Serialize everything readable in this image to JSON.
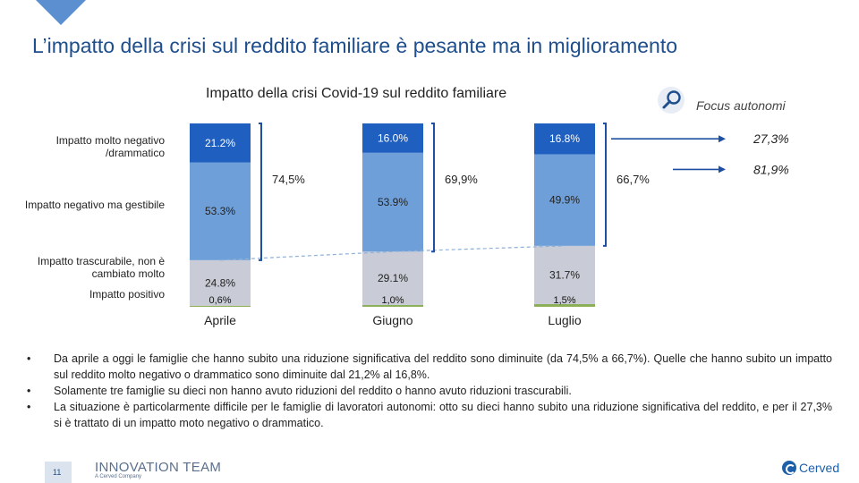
{
  "slide": {
    "title": "L’impatto della crisi sul reddito familiare è pesante ma in miglioramento",
    "page_number": "11"
  },
  "chart_data": {
    "type": "bar",
    "stacked": true,
    "title": "Impatto della crisi Covid-19 sul reddito familiare",
    "categories": [
      "Aprile",
      "Giugno",
      "Luglio"
    ],
    "series": [
      {
        "name": "Impatto positivo",
        "values": [
          0.6,
          1.0,
          1.5
        ],
        "labels": [
          "0,6%",
          "1,0%",
          "1,5%"
        ],
        "color": "#8cb05a"
      },
      {
        "name": "Impatto trascurabile, non è cambiato molto",
        "values": [
          24.8,
          29.1,
          31.7
        ],
        "labels": [
          "24.8%",
          "29.1%",
          "31.7%"
        ],
        "color": "#c9ccd6"
      },
      {
        "name": "Impatto negativo ma gestibile",
        "values": [
          53.3,
          53.9,
          49.9
        ],
        "labels": [
          "53.3%",
          "53.9%",
          "49.9%"
        ],
        "color": "#6e9fd8"
      },
      {
        "name": "Impatto molto negativo /drammatico",
        "values": [
          21.2,
          16.0,
          16.8
        ],
        "labels": [
          "21.2%",
          "16.0%",
          "16.8%"
        ],
        "color": "#1f5fc0"
      }
    ],
    "negative_totals": [
      "74,5%",
      "69,9%",
      "66,7%"
    ],
    "ylim": [
      0,
      100
    ],
    "focus_autonomi": {
      "label": "Focus autonomi",
      "molto_negativo": "27,3%",
      "totale_negativo": "81,9%"
    }
  },
  "row_labels": [
    "Impatto molto negativo /drammatico",
    "Impatto negativo ma gestibile",
    "Impatto trascurabile, non è cambiato molto",
    "Impatto positivo"
  ],
  "bullets": [
    "Da aprile a oggi le famiglie che hanno subito una riduzione significativa del reddito sono diminuite (da 74,5% a 66,7%). Quelle che hanno subito un impatto sul reddito molto negativo o drammatico sono diminuite dal 21,2% al 16,8%.",
    "Solamente tre famiglie su dieci non hanno avuto riduzioni del reddito o hanno avuto riduzioni trascurabili.",
    "La situazione è particolarmente difficile per le famiglie di lavoratori autonomi: otto su dieci hanno subito una riduzione significativa del reddito, e per il 27,3% si è trattato di un impatto moto negativo o drammatico."
  ],
  "footer": {
    "brand": "INNOVATION TEAM",
    "brand_sub": "A Cerved Company",
    "logo": "Cerved"
  },
  "colors": {
    "title": "#1e4e8c",
    "accent": "#1f5fc0"
  }
}
